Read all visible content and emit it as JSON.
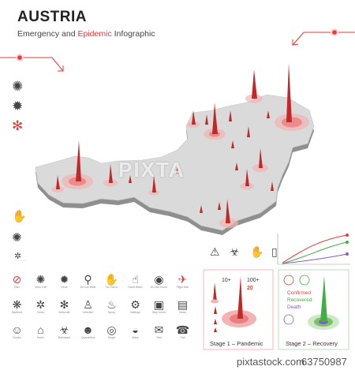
{
  "title": "AUSTRIA",
  "subtitle": {
    "pre": "Emergency and ",
    "highlight": "Epidemic",
    "post": " Infographic"
  },
  "watermark": "PIXTA",
  "colors": {
    "accent": "#e23b3b",
    "map_top": "#d9d9d9",
    "map_side": "#9a9a9a",
    "spike": "#c0282a",
    "recovered": "#3fae49",
    "death": "#8a5cc2",
    "panel_border": "#f2a8a8"
  },
  "stage1": {
    "label_a": "10+",
    "label_b": "100+",
    "label_c": "20",
    "caption": "Stage 1 – Pandemic"
  },
  "stage2": {
    "caption": "Stage 2 – Recovery",
    "legend": [
      "Confirmed",
      "Recovered",
      "Death"
    ]
  },
  "footer": {
    "logo": "pixtastock.com",
    "id": "63750987"
  },
  "icons": [
    {
      "name": "ban",
      "glyph": "⊘",
      "label": "Ban"
    },
    {
      "name": "virus",
      "glyph": "✺",
      "label": "Virus Cell"
    },
    {
      "name": "virus-alt",
      "glyph": "✹",
      "label": "Virus"
    },
    {
      "name": "walk",
      "glyph": "⚲",
      "label": "Do Not Walk"
    },
    {
      "name": "no-touch",
      "glyph": "✋",
      "label": "No Touch"
    },
    {
      "name": "hand-wash",
      "glyph": "☝",
      "label": "Hand Wash"
    },
    {
      "name": "eye",
      "glyph": "◉",
      "label": "Do Not Touch"
    },
    {
      "name": "flight",
      "glyph": "✈",
      "label": "Flight Ban"
    },
    {
      "name": "bacteria",
      "glyph": "❋",
      "label": "Bacteria"
    },
    {
      "name": "germ",
      "glyph": "✲",
      "label": "Germ"
    },
    {
      "name": "molecule",
      "glyph": "✻",
      "label": "Molecule"
    },
    {
      "name": "person",
      "glyph": "♙",
      "label": "Infected"
    },
    {
      "name": "spray",
      "glyph": "♨",
      "label": "Spray"
    },
    {
      "name": "settings",
      "glyph": "⚙",
      "label": "Settings"
    },
    {
      "name": "window",
      "glyph": "▣",
      "label": "Stay Home"
    },
    {
      "name": "news",
      "glyph": "▤",
      "label": "News"
    },
    {
      "name": "doctor",
      "glyph": "☺",
      "label": "Doctor"
    },
    {
      "name": "house",
      "glyph": "⌂",
      "label": "Home"
    },
    {
      "name": "biohazard",
      "glyph": "☣",
      "label": "Biohazard"
    },
    {
      "name": "people",
      "glyph": "☻",
      "label": "Quarantine"
    },
    {
      "name": "target",
      "glyph": "◎",
      "label": "Target"
    },
    {
      "name": "mask",
      "glyph": "◒",
      "label": "Mask"
    },
    {
      "name": "test",
      "glyph": "✉",
      "label": "Test"
    },
    {
      "name": "call",
      "glyph": "☎",
      "label": "Call"
    }
  ],
  "left_icons": [
    {
      "name": "virus-cell",
      "glyph": "✺"
    },
    {
      "name": "virus-check",
      "glyph": "✹"
    },
    {
      "name": "virus-ban",
      "glyph": "✻"
    },
    {
      "name": "hand-ban",
      "glyph": "✋"
    },
    {
      "name": "virus-small",
      "glyph": "✺"
    },
    {
      "name": "germ-small",
      "glyph": "✲"
    }
  ],
  "panel_icons": [
    {
      "name": "warning",
      "glyph": "⚠"
    },
    {
      "name": "biohazard",
      "glyph": "☣"
    },
    {
      "name": "stop-hand",
      "glyph": "✋"
    },
    {
      "name": "phone",
      "glyph": "▯"
    }
  ]
}
